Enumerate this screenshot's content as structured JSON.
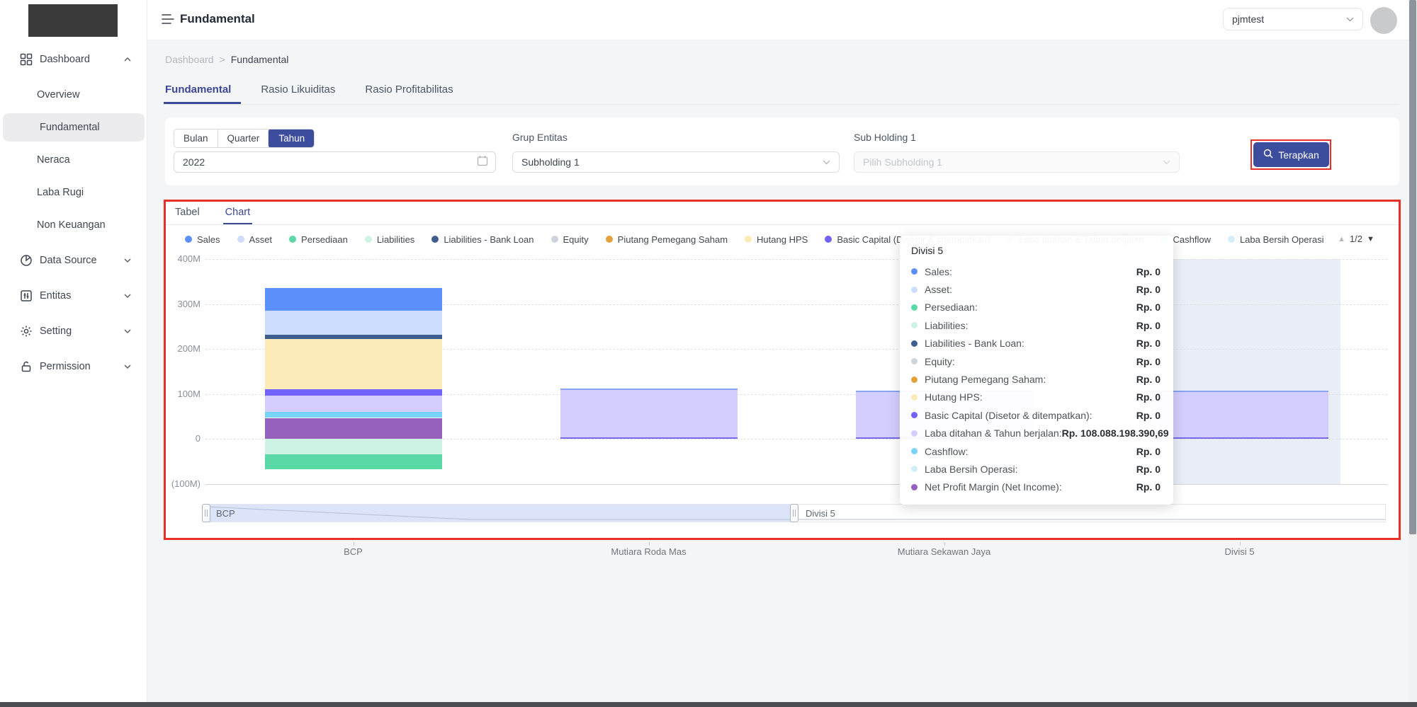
{
  "colors": {
    "accent": "#3D4D9E",
    "annotation_red": "#E8302A"
  },
  "sidebar": {
    "items": [
      {
        "label": "Dashboard",
        "icon": "dashboard-grid-icon",
        "expanded": true,
        "children": [
          {
            "label": "Overview"
          },
          {
            "label": "Fundamental",
            "active": true
          },
          {
            "label": "Neraca"
          },
          {
            "label": "Laba Rugi"
          },
          {
            "label": "Non Keuangan"
          }
        ]
      },
      {
        "label": "Data Source",
        "icon": "pie-chart-icon"
      },
      {
        "label": "Entitas",
        "icon": "entity-table-icon"
      },
      {
        "label": "Setting",
        "icon": "gear-icon"
      },
      {
        "label": "Permission",
        "icon": "lock-icon"
      }
    ]
  },
  "header": {
    "title": "Fundamental",
    "user_select_value": "pjmtest"
  },
  "breadcrumb": {
    "items": [
      "Dashboard",
      "Fundamental"
    ],
    "separator": ">"
  },
  "page_tabs": [
    {
      "label": "Fundamental",
      "active": true
    },
    {
      "label": "Rasio Likuiditas",
      "active": false
    },
    {
      "label": "Rasio Profitabilitas",
      "active": false
    }
  ],
  "filters": {
    "period_options": [
      "Bulan",
      "Quarter",
      "Tahun"
    ],
    "period_selected": "Tahun",
    "year_value": "2022",
    "grup_entitas_label": "Grup Entitas",
    "grup_entitas_value": "Subholding 1",
    "sub_holding_label": "Sub Holding 1",
    "sub_holding_placeholder": "Pilih Subholding 1",
    "apply_label": "Terapkan"
  },
  "chart_card": {
    "tabs": [
      {
        "label": "Tabel",
        "active": false
      },
      {
        "label": "Chart",
        "active": true
      }
    ],
    "pager": {
      "up": "▲",
      "label": "1/2",
      "down": "▼"
    }
  },
  "chart_data": {
    "type": "bar",
    "stacked": true,
    "categories": [
      "BCP",
      "Mutiara Roda Mas",
      "Mutiara Sekawan Jaya",
      "Divisi 5"
    ],
    "y_tick_labels": [
      "400M",
      "300M",
      "200M",
      "100M",
      "0",
      "(100M)"
    ],
    "y_tick_values": [
      400,
      300,
      200,
      100,
      0,
      -100
    ],
    "ylim": [
      -100,
      400
    ],
    "unit": "millions Rp",
    "grid": "dashed horizontal",
    "legend_position": "top",
    "legend_visible_count": 12,
    "hover_category_index": 3,
    "series": [
      {
        "name": "Sales",
        "color": "#5B8FF9",
        "values": [
          50,
          0,
          0,
          0
        ]
      },
      {
        "name": "Asset",
        "color": "#CDDDFD",
        "values": [
          53,
          0,
          0,
          0
        ]
      },
      {
        "name": "Persediaan",
        "color": "#5AD8A6",
        "values": [
          -33,
          0,
          0,
          0
        ]
      },
      {
        "name": "Liabilities",
        "color": "#CDF3E4",
        "values": [
          -34,
          0,
          0,
          0
        ]
      },
      {
        "name": "Liabilities - Bank Loan",
        "color": "#3F5E90",
        "values": [
          9,
          0,
          0,
          0
        ]
      },
      {
        "name": "Equity",
        "color": "#CED4DE",
        "values": [
          0,
          0,
          0,
          0
        ]
      },
      {
        "name": "Piutang Pemegang Saham",
        "color": "#E3A13C",
        "values": [
          0,
          0,
          0,
          0
        ]
      },
      {
        "name": "Hutang HPS",
        "color": "#FCEBB9",
        "values": [
          113,
          0,
          0,
          0
        ]
      },
      {
        "name": "Basic Capital (Disetor & ditempatkan)",
        "color": "#7262FD",
        "values": [
          13,
          0,
          0,
          0
        ]
      },
      {
        "name": "Laba ditahan & Tahun berjalan",
        "color": "#D3CEFD",
        "values": [
          36,
          113,
          108,
          108
        ]
      },
      {
        "name": "Cashflow",
        "color": "#78D3F8",
        "values": [
          14,
          0,
          0,
          0
        ]
      },
      {
        "name": "Laba Bersih Operasi",
        "color": "#D3EEF9",
        "values": [
          0,
          0,
          0,
          0
        ]
      },
      {
        "name": "Net Profit Margin (Net Income)",
        "color": "#9661BC",
        "values": [
          47,
          0,
          0,
          0
        ]
      }
    ],
    "datazoom": {
      "start_label": "BCP",
      "end_label": "Divisi 5"
    }
  },
  "tooltip": {
    "title": "Divisi 5",
    "rows": [
      {
        "label": "Sales:",
        "value": "Rp. 0"
      },
      {
        "label": "Asset:",
        "value": "Rp. 0"
      },
      {
        "label": "Persediaan:",
        "value": "Rp. 0"
      },
      {
        "label": "Liabilities:",
        "value": "Rp. 0"
      },
      {
        "label": "Liabilities - Bank Loan:",
        "value": "Rp. 0"
      },
      {
        "label": "Equity:",
        "value": "Rp. 0"
      },
      {
        "label": "Piutang Pemegang Saham:",
        "value": "Rp. 0"
      },
      {
        "label": "Hutang HPS:",
        "value": "Rp. 0"
      },
      {
        "label": "Basic Capital (Disetor & ditempatkan):",
        "value": "Rp. 0"
      },
      {
        "label": "Laba ditahan & Tahun berjalan:",
        "value": "Rp. 108.088.198.390,69"
      },
      {
        "label": "Cashflow:",
        "value": "Rp. 0"
      },
      {
        "label": "Laba Bersih Operasi:",
        "value": "Rp. 0"
      },
      {
        "label": "Net Profit Margin (Net Income):",
        "value": "Rp. 0"
      }
    ]
  }
}
